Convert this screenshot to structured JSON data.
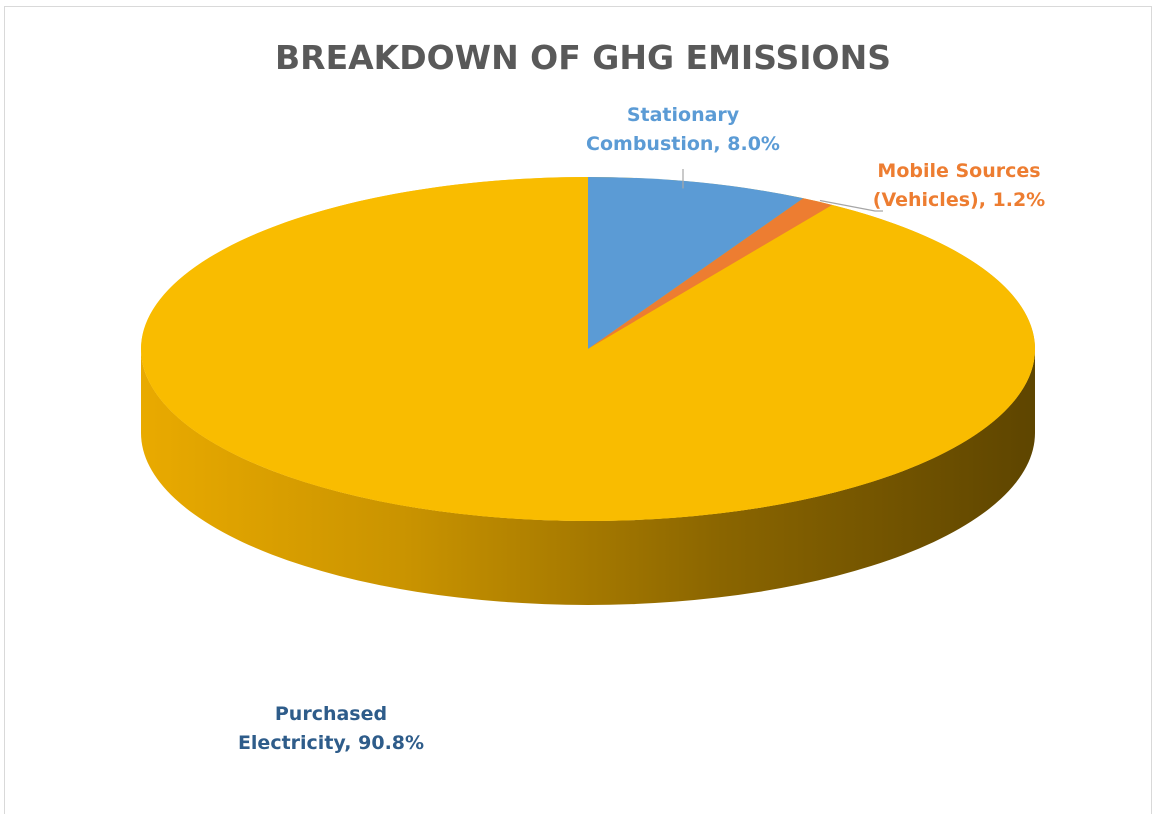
{
  "chart_data": {
    "type": "pie",
    "style": "3d",
    "title": "BREAKDOWN OF GHG EMISSIONS",
    "slices": [
      {
        "name": "Stationary Combustion",
        "value": 8.0,
        "label_lines": [
          "Stationary",
          "Combustion, 8.0%"
        ],
        "color": "#5b9bd5",
        "label_color": "#5b9bd5"
      },
      {
        "name": "Mobile Sources (Vehicles)",
        "value": 1.2,
        "label_lines": [
          "Mobile Sources",
          "(Vehicles), 1.2%"
        ],
        "color": "#ed7d31",
        "label_color": "#ed7d31"
      },
      {
        "name": "Purchased Electricity",
        "value": 90.8,
        "label_lines": [
          "Purchased",
          "Electricity, 90.8%"
        ],
        "color": "#f9bc00",
        "label_color": "#2e5c8a"
      }
    ],
    "legend": "none"
  }
}
